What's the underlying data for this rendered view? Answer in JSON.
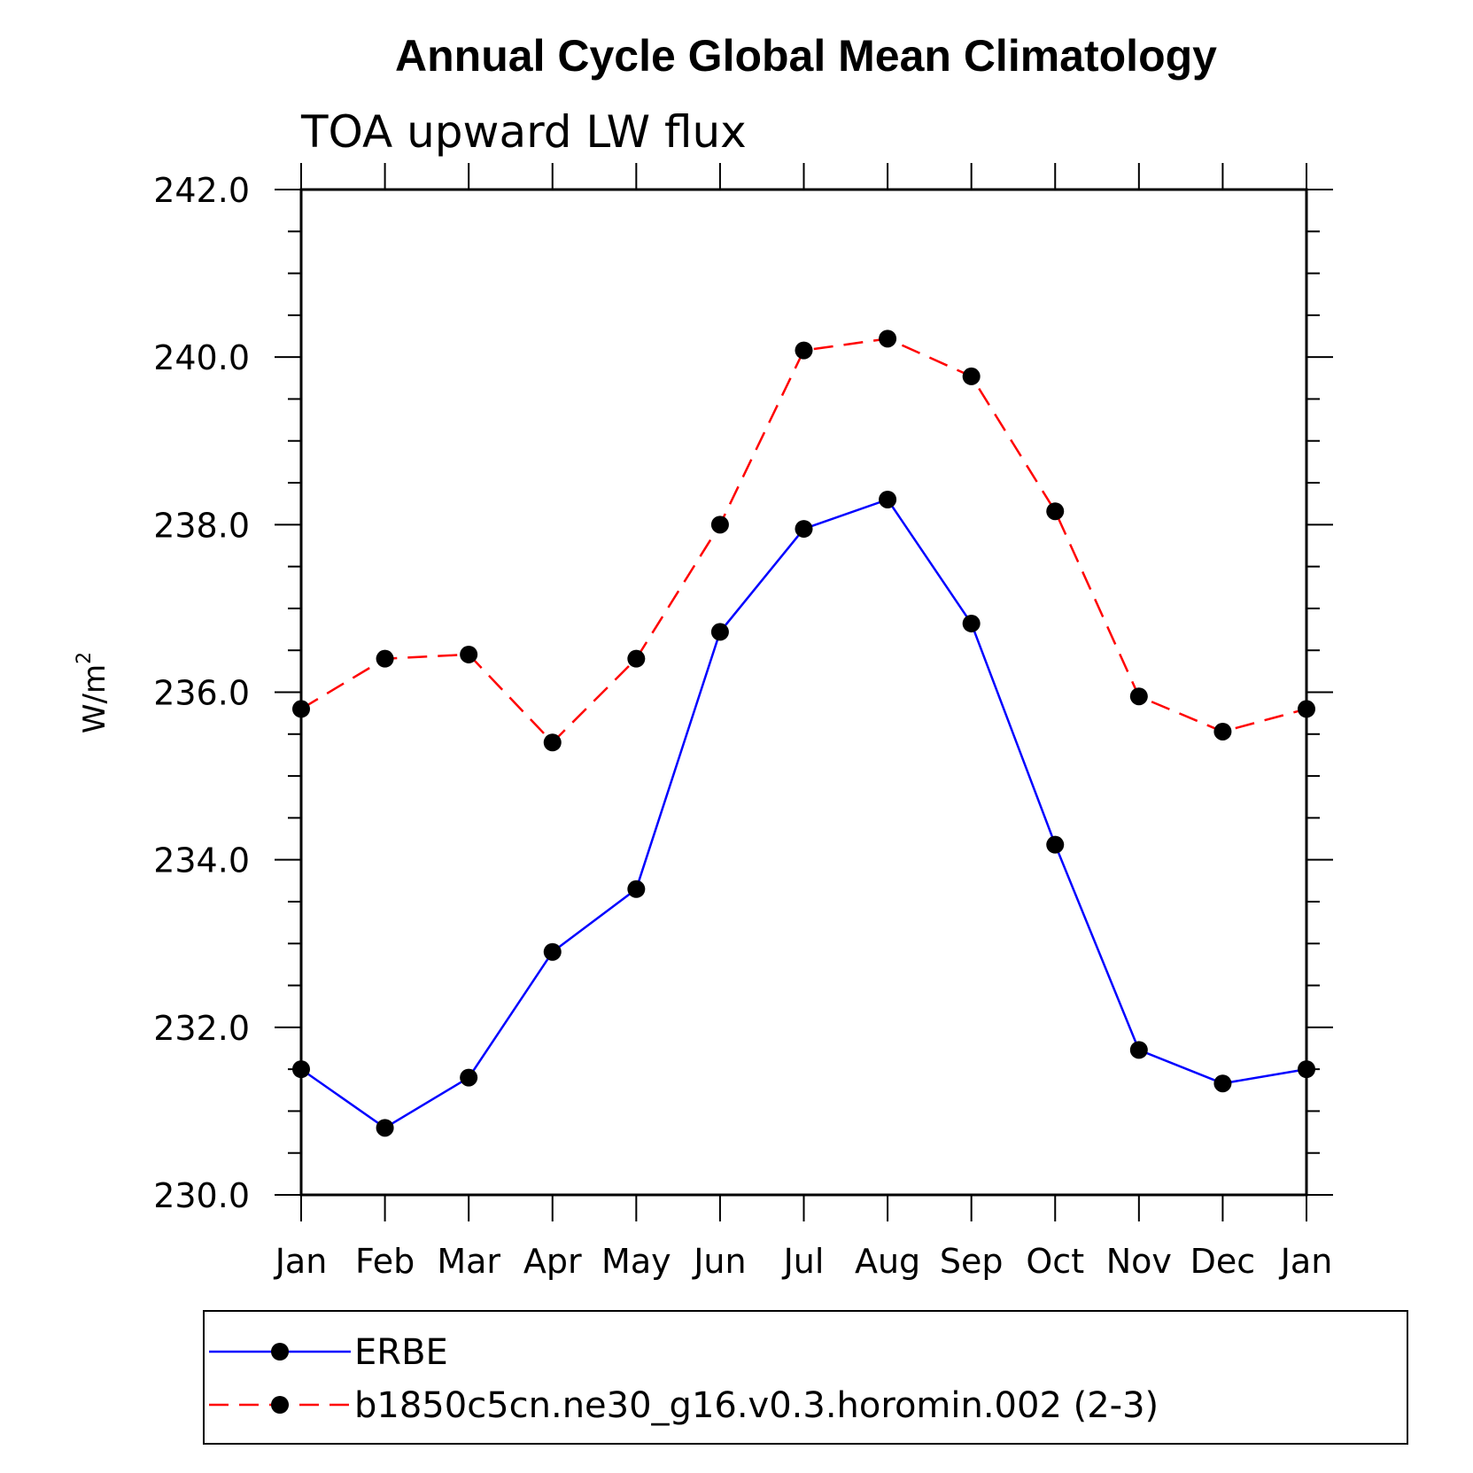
{
  "chart_data": {
    "type": "line",
    "title": "Annual Cycle Global Mean Climatology",
    "subtitle": "TOA upward LW flux",
    "ylabel": "W/m",
    "ylabel_sup": "2",
    "xlabel": "",
    "ylim": [
      230.0,
      242.0
    ],
    "yticks": [
      "230.0",
      "232.0",
      "234.0",
      "236.0",
      "238.0",
      "240.0",
      "242.0"
    ],
    "categories": [
      "Jan",
      "Feb",
      "Mar",
      "Apr",
      "May",
      "Jun",
      "Jul",
      "Aug",
      "Sep",
      "Oct",
      "Nov",
      "Dec",
      "Jan"
    ],
    "series": [
      {
        "name": "ERBE",
        "color": "#0000ff",
        "style": "solid",
        "values": [
          231.5,
          230.8,
          231.4,
          232.9,
          233.65,
          236.72,
          237.95,
          238.3,
          236.82,
          234.18,
          231.73,
          231.33,
          231.5
        ]
      },
      {
        "name": "b1850c5cn.ne30_g16.v0.3.horomin.002 (2-3)",
        "color": "#ff0000",
        "style": "dashed",
        "values": [
          235.8,
          236.4,
          236.45,
          235.4,
          236.4,
          238.0,
          240.08,
          240.22,
          239.77,
          238.16,
          235.95,
          235.53,
          235.8
        ]
      }
    ],
    "legend_position": "bottom"
  }
}
